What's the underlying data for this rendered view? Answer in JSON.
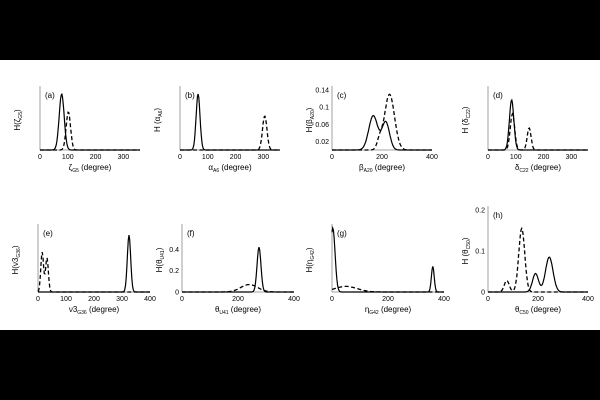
{
  "chart_data": [
    {
      "id": "a",
      "type": "line",
      "panel_label": "(a)",
      "ylabel": {
        "base": "H(ζ",
        "sub": "G5",
        "close": ")"
      },
      "xlabel": {
        "base": "ζ",
        "sub": "G5",
        "tail": " (degree)"
      },
      "xlim": [
        0,
        360
      ],
      "ylim": [
        0,
        0.3
      ],
      "xticks": [
        "0",
        "100",
        "200",
        "300"
      ],
      "yticks": [],
      "series": [
        {
          "style": "solid",
          "peaks": [
            {
              "mu": 78,
              "sigma": 9,
              "amp": 0.28
            }
          ]
        },
        {
          "style": "dashed",
          "peaks": [
            {
              "mu": 102,
              "sigma": 8,
              "amp": 0.19
            }
          ]
        }
      ]
    },
    {
      "id": "b",
      "type": "line",
      "panel_label": "(b)",
      "ylabel": {
        "base": "H (α",
        "sub": "A6",
        "close": ")"
      },
      "xlabel": {
        "base": "α",
        "sub": "A6",
        "tail": " (degree)"
      },
      "xlim": [
        0,
        360
      ],
      "ylim": [
        0,
        0.3
      ],
      "xticks": [
        "0",
        "100",
        "200",
        "300"
      ],
      "yticks": [],
      "series": [
        {
          "style": "solid",
          "peaks": [
            {
              "mu": 65,
              "sigma": 7,
              "amp": 0.28
            }
          ]
        },
        {
          "style": "dashed",
          "peaks": [
            {
              "mu": 305,
              "sigma": 8,
              "amp": 0.17
            }
          ]
        }
      ]
    },
    {
      "id": "c",
      "type": "line",
      "panel_label": "(c)",
      "ylabel": {
        "base": "H(β",
        "sub": "A20",
        "close": ")"
      },
      "xlabel": {
        "base": "β",
        "sub": "A20",
        "tail": " (degree)"
      },
      "xlim": [
        0,
        400
      ],
      "ylim": [
        0,
        0.14
      ],
      "xticks": [
        "0",
        "200",
        "400"
      ],
      "yticks": [
        "0.02",
        "0.06",
        "0.1",
        "0.14"
      ],
      "series": [
        {
          "style": "solid",
          "peaks": [
            {
              "mu": 165,
              "sigma": 18,
              "amp": 0.08
            },
            {
              "mu": 215,
              "sigma": 15,
              "amp": 0.065
            }
          ]
        },
        {
          "style": "dashed",
          "peaks": [
            {
              "mu": 230,
              "sigma": 20,
              "amp": 0.13
            },
            {
              "mu": 190,
              "sigma": 10,
              "amp": 0.02
            }
          ]
        }
      ]
    },
    {
      "id": "d",
      "type": "line",
      "panel_label": "(d)",
      "ylabel": {
        "base": "H (δ",
        "sub": "C22",
        "close": ")"
      },
      "xlabel": {
        "base": "δ",
        "sub": "C22",
        "tail": " (degree)"
      },
      "xlim": [
        0,
        360
      ],
      "ylim": [
        0,
        0.3
      ],
      "xticks": [
        "0",
        "100",
        "200",
        "300"
      ],
      "yticks": [],
      "series": [
        {
          "style": "solid",
          "peaks": [
            {
              "mu": 85,
              "sigma": 8,
              "amp": 0.25
            }
          ]
        },
        {
          "style": "dashed",
          "peaks": [
            {
              "mu": 88,
              "sigma": 8,
              "amp": 0.18
            },
            {
              "mu": 148,
              "sigma": 7,
              "amp": 0.11
            }
          ]
        }
      ]
    },
    {
      "id": "e",
      "type": "line",
      "panel_label": "(e)",
      "ylabel": {
        "base": "H(ν3",
        "sub": "G36",
        "close": ")"
      },
      "xlabel": {
        "base": "ν3",
        "sub": "G36",
        "tail": " (degree)"
      },
      "xlim": [
        0,
        400
      ],
      "ylim": [
        0,
        0.45
      ],
      "xticks": [
        "0",
        "100",
        "200",
        "300",
        "400"
      ],
      "yticks": [],
      "series": [
        {
          "style": "solid",
          "peaks": [
            {
              "mu": 325,
              "sigma": 6,
              "amp": 0.4
            }
          ]
        },
        {
          "style": "dashed",
          "peaks": [
            {
              "mu": 15,
              "sigma": 5,
              "amp": 0.28
            },
            {
              "mu": 32,
              "sigma": 5,
              "amp": 0.24
            }
          ]
        }
      ]
    },
    {
      "id": "f",
      "type": "line",
      "panel_label": "(f)",
      "ylabel": {
        "base": "H(θ",
        "sub": "U41",
        "close": ")"
      },
      "xlabel": {
        "base": "θ",
        "sub": "U41",
        "tail": " (degree)"
      },
      "xlim": [
        0,
        400
      ],
      "ylim": [
        0,
        0.6
      ],
      "xticks": [
        "0",
        "200",
        "400"
      ],
      "yticks": [
        "0",
        "0.2",
        "0.4"
      ],
      "series": [
        {
          "style": "solid",
          "peaks": [
            {
              "mu": 275,
              "sigma": 7,
              "amp": 0.42
            }
          ]
        },
        {
          "style": "dashed",
          "peaks": [
            {
              "mu": 240,
              "sigma": 30,
              "amp": 0.07
            }
          ]
        }
      ]
    },
    {
      "id": "g",
      "type": "line",
      "panel_label": "(g)",
      "ylabel": {
        "base": "H(η",
        "sub": "G42",
        "close": ")"
      },
      "xlabel": {
        "base": "η",
        "sub": "G42",
        "tail": " (degree)"
      },
      "xlim": [
        0,
        400
      ],
      "ylim": [
        0,
        0.4
      ],
      "xticks": [
        "0",
        "200",
        "400"
      ],
      "yticks": [],
      "series": [
        {
          "style": "solid",
          "peaks": [
            {
              "mu": 3,
              "sigma": 8,
              "amp": 0.4
            },
            {
              "mu": 360,
              "sigma": 5,
              "amp": 0.16
            }
          ]
        },
        {
          "style": "dashed",
          "peaks": [
            {
              "mu": 50,
              "sigma": 40,
              "amp": 0.035
            }
          ]
        }
      ]
    },
    {
      "id": "h",
      "type": "line",
      "panel_label": "(h)",
      "ylabel": {
        "base": "H (θ",
        "sub": "C50",
        "close": ")"
      },
      "xlabel": {
        "base": "θ",
        "sub": "C50",
        "tail": " (degree)"
      },
      "xlim": [
        0,
        400
      ],
      "ylim": [
        0,
        0.2
      ],
      "xticks": [
        "0",
        "200",
        "400"
      ],
      "yticks": [
        "0",
        "0.1",
        "0.2"
      ],
      "series": [
        {
          "style": "solid",
          "peaks": [
            {
              "mu": 245,
              "sigma": 15,
              "amp": 0.085
            },
            {
              "mu": 190,
              "sigma": 12,
              "amp": 0.045
            }
          ]
        },
        {
          "style": "dashed",
          "peaks": [
            {
              "mu": 135,
              "sigma": 12,
              "amp": 0.155
            },
            {
              "mu": 75,
              "sigma": 10,
              "amp": 0.028
            }
          ]
        }
      ]
    }
  ]
}
